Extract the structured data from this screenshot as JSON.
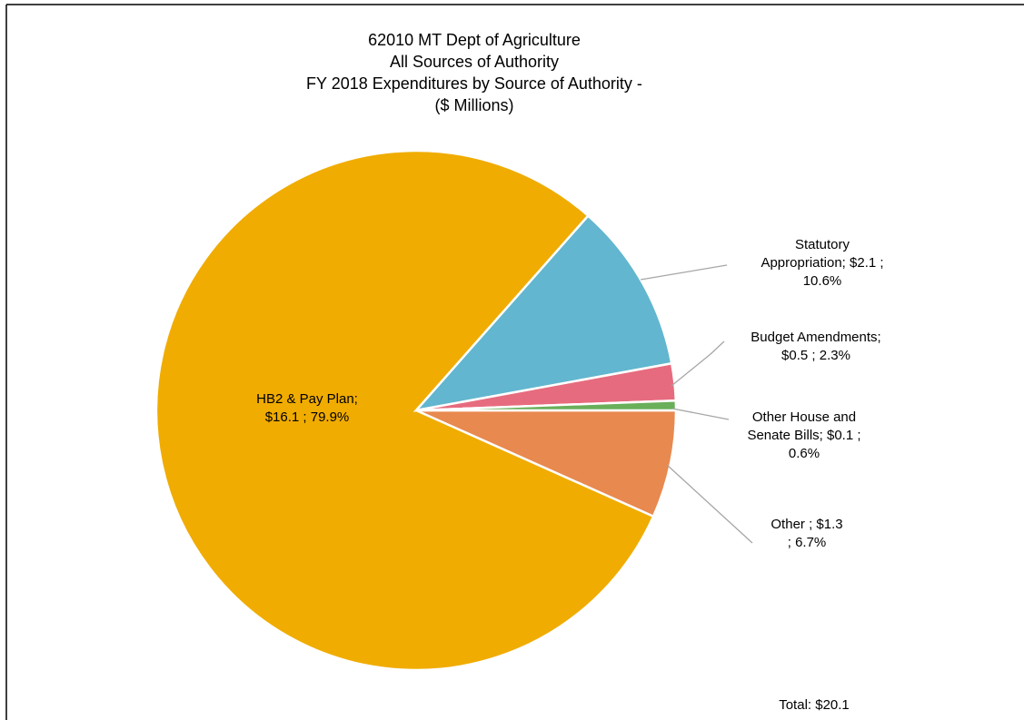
{
  "chart_data": {
    "type": "pie",
    "title": [
      "62010 MT Dept of Agriculture",
      "All Sources of Authority",
      "FY 2018 Expenditures by Source of Authority -",
      "($ Millions)"
    ],
    "values": [
      6.7,
      79.9,
      10.6,
      2.3,
      0.6
    ],
    "value_labels": [
      [
        "Other  ;  $1.3",
        "; 6.7%"
      ],
      [
        "HB2 & Pay Plan;",
        "$16.1 ; 79.9%"
      ],
      [
        "Statutory",
        "Appropriation;  $2.1 ;",
        "10.6%"
      ],
      [
        "Budget Amendments;",
        "$0.5 ; 2.3%"
      ],
      [
        "Other House and",
        "Senate Bills;  $0.1 ;",
        "0.6%"
      ]
    ],
    "colors": [
      "#e8894f",
      "#f0ac00",
      "#62b6cf",
      "#e76b7e",
      "#6aaf5a"
    ],
    "total_label": "Total:  $20.1"
  }
}
